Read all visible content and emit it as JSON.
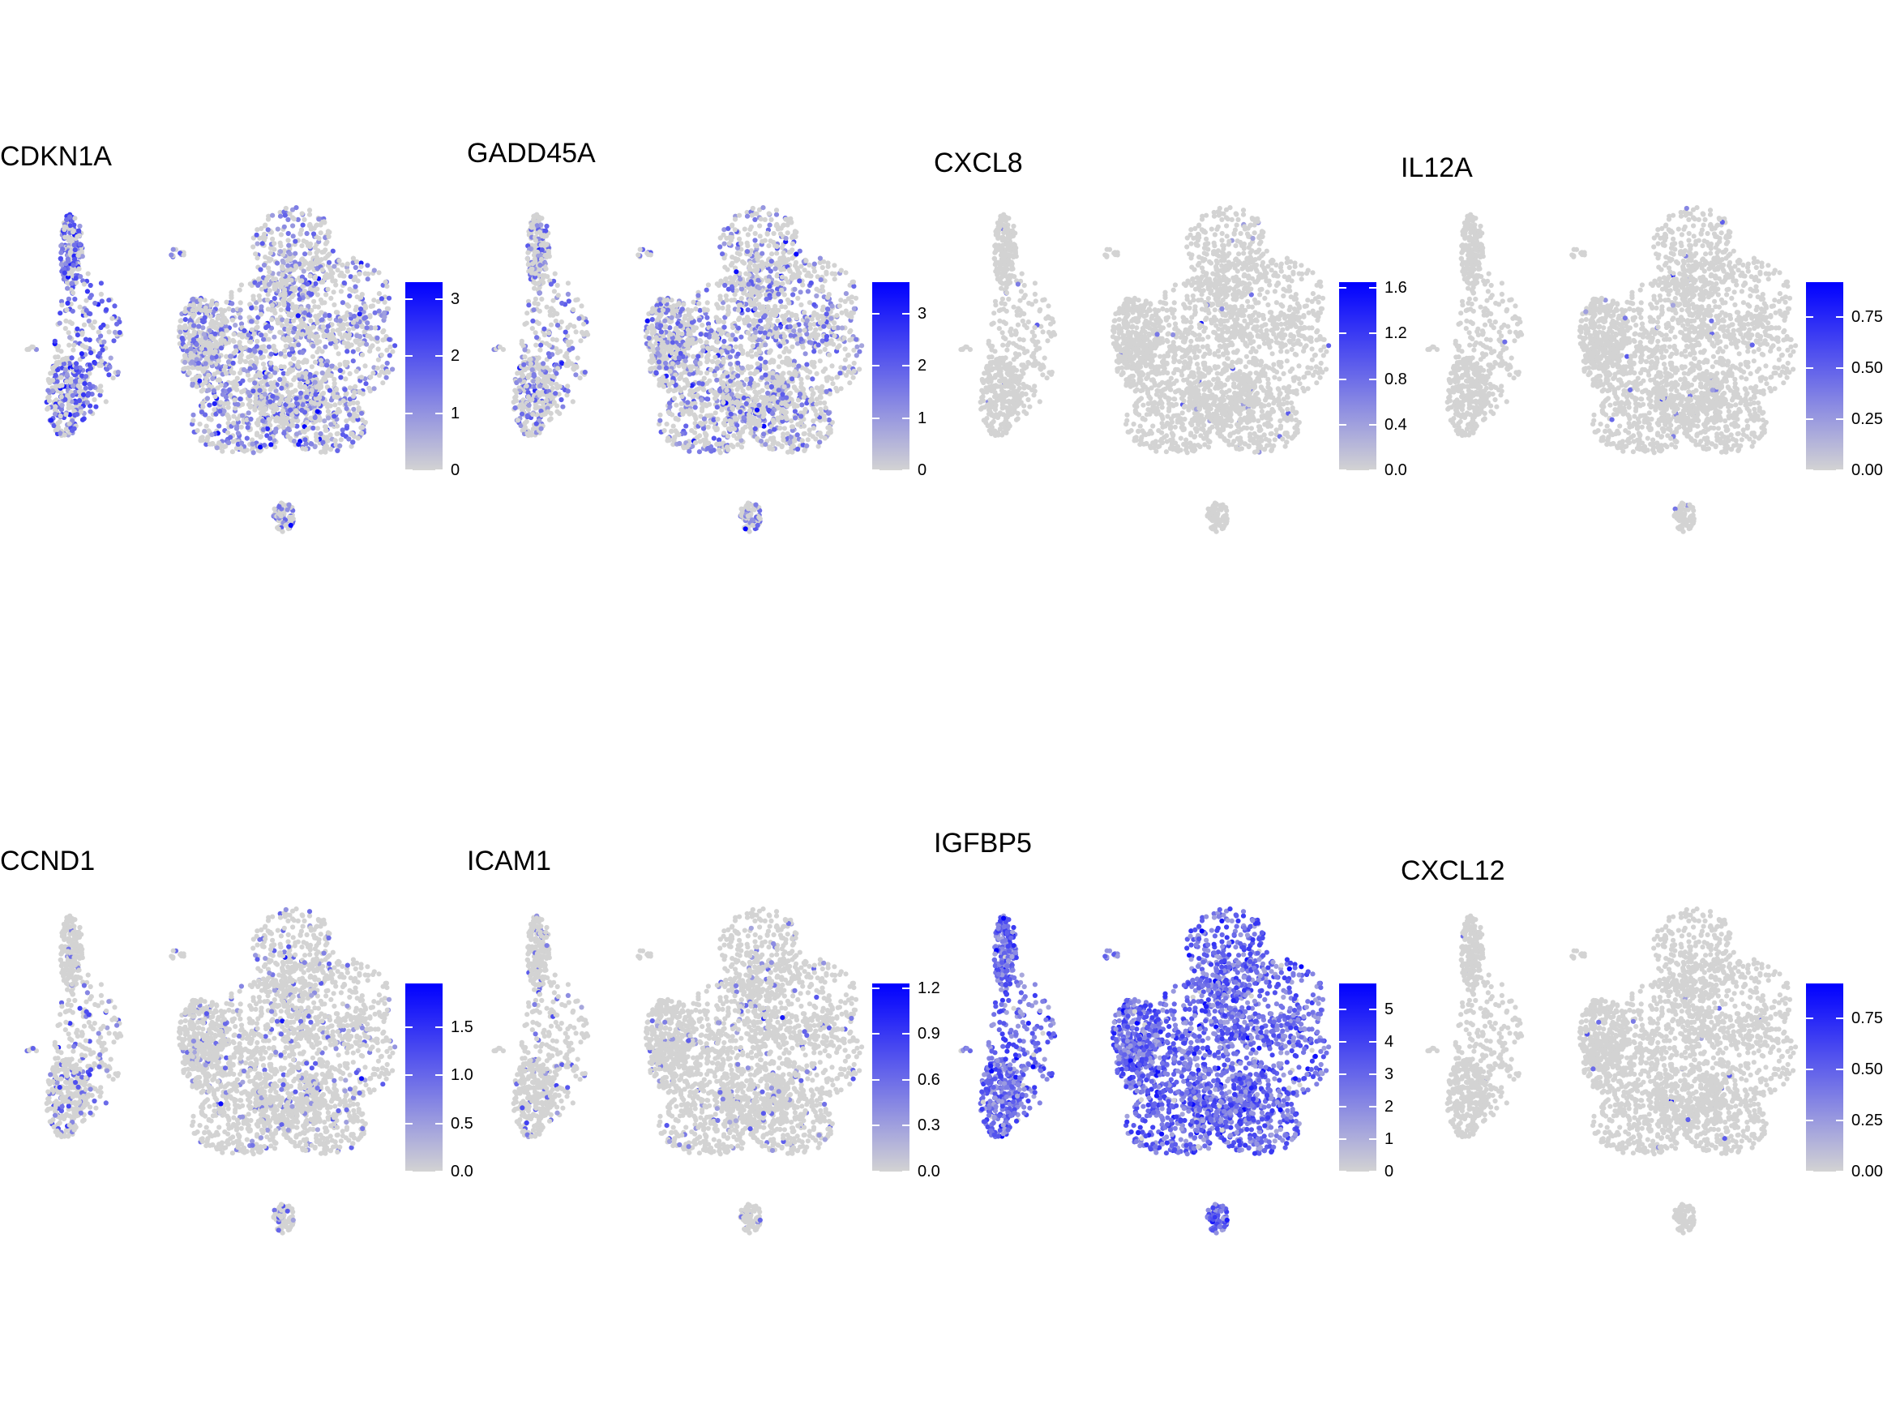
{
  "figure": {
    "colors": {
      "low": "#d3d3d3",
      "high": "#0000ff"
    },
    "point_color_na": "#d3d3d3"
  },
  "chart_data": [
    {
      "type": "scatter",
      "title": "CDKN1A",
      "legend": "right",
      "colorbar_max": 3.3,
      "colorbar_ticks": [
        {
          "value": 0,
          "label": "0"
        },
        {
          "value": 1,
          "label": "1"
        },
        {
          "value": 2,
          "label": "2"
        },
        {
          "value": 3,
          "label": "3"
        }
      ],
      "expression_level": 0.35,
      "hotspots": [
        "left_lobe",
        "left_upper"
      ]
    },
    {
      "type": "scatter",
      "title": "GADD45A",
      "legend": "right",
      "colorbar_max": 3.6,
      "colorbar_ticks": [
        {
          "value": 0,
          "label": "0"
        },
        {
          "value": 1,
          "label": "1"
        },
        {
          "value": 2,
          "label": "2"
        },
        {
          "value": 3,
          "label": "3"
        }
      ],
      "expression_level": 0.3,
      "hotspots": [
        "small_top"
      ]
    },
    {
      "type": "scatter",
      "title": "CXCL8",
      "legend": "right",
      "colorbar_max": 1.65,
      "colorbar_ticks": [
        {
          "value": 0,
          "label": "0.0"
        },
        {
          "value": 0.4,
          "label": "0.4"
        },
        {
          "value": 0.8,
          "label": "0.8"
        },
        {
          "value": 1.2,
          "label": "1.2"
        },
        {
          "value": 1.6,
          "label": "1.6"
        }
      ],
      "expression_level": 0.01,
      "hotspots": []
    },
    {
      "type": "scatter",
      "title": "IL12A",
      "legend": "right",
      "colorbar_max": 0.92,
      "colorbar_ticks": [
        {
          "value": 0,
          "label": "0.00"
        },
        {
          "value": 0.25,
          "label": "0.25"
        },
        {
          "value": 0.5,
          "label": "0.50"
        },
        {
          "value": 0.75,
          "label": "0.75"
        }
      ],
      "expression_level": 0.012,
      "hotspots": []
    },
    {
      "type": "scatter",
      "title": "CCND1",
      "legend": "right",
      "colorbar_max": 1.95,
      "colorbar_ticks": [
        {
          "value": 0,
          "label": "0.0"
        },
        {
          "value": 0.5,
          "label": "0.5"
        },
        {
          "value": 1,
          "label": "1.0"
        },
        {
          "value": 1.5,
          "label": "1.5"
        }
      ],
      "expression_level": 0.1,
      "hotspots": [
        "left_lobe"
      ]
    },
    {
      "type": "scatter",
      "title": "ICAM1",
      "legend": "right",
      "colorbar_max": 1.23,
      "colorbar_ticks": [
        {
          "value": 0,
          "label": "0.0"
        },
        {
          "value": 0.3,
          "label": "0.3"
        },
        {
          "value": 0.6,
          "label": "0.6"
        },
        {
          "value": 0.9,
          "label": "0.9"
        },
        {
          "value": 1.2,
          "label": "1.2"
        }
      ],
      "expression_level": 0.06,
      "hotspots": [
        "left_lobe"
      ]
    },
    {
      "type": "scatter",
      "title": "IGFBP5",
      "legend": "right",
      "colorbar_max": 5.8,
      "colorbar_ticks": [
        {
          "value": 0,
          "label": "0"
        },
        {
          "value": 1,
          "label": "1"
        },
        {
          "value": 2,
          "label": "2"
        },
        {
          "value": 3,
          "label": "3"
        },
        {
          "value": 4,
          "label": "4"
        },
        {
          "value": 5,
          "label": "5"
        }
      ],
      "expression_level": 0.85,
      "hotspots": [
        "left_lobe",
        "left_upper",
        "small_bottom",
        "big"
      ]
    },
    {
      "type": "scatter",
      "title": "CXCL12",
      "legend": "right",
      "colorbar_max": 0.92,
      "colorbar_ticks": [
        {
          "value": 0,
          "label": "0.00"
        },
        {
          "value": 0.25,
          "label": "0.25"
        },
        {
          "value": 0.5,
          "label": "0.50"
        },
        {
          "value": 0.75,
          "label": "0.75"
        }
      ],
      "expression_level": 0.008,
      "hotspots": []
    }
  ]
}
